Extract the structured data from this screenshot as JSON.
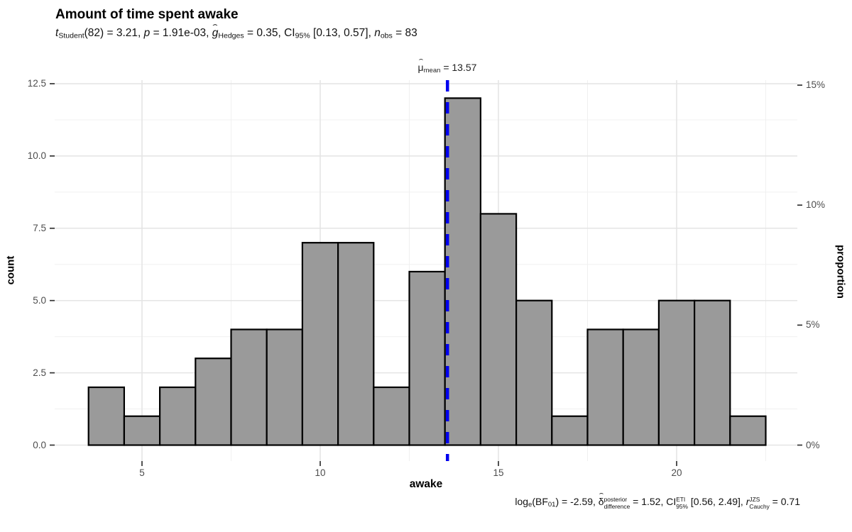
{
  "header": {
    "title": "Amount of time spent awake"
  },
  "subtitle_segments": [
    {
      "t": "t",
      "i": true
    },
    {
      "t": "Student",
      "sub": true
    },
    {
      "t": "(82) = 3.21, "
    },
    {
      "t": "p",
      "i": true
    },
    {
      "t": " = 1.91e-03, "
    },
    {
      "t": "g",
      "i": true,
      "hat": true
    },
    {
      "t": "Hedges",
      "sub": true
    },
    {
      "t": " = 0.35, CI"
    },
    {
      "t": "95%",
      "sub": true
    },
    {
      "t": " [0.13, 0.57], "
    },
    {
      "t": "n",
      "i": true
    },
    {
      "t": "obs",
      "sub": true
    },
    {
      "t": " = 83"
    }
  ],
  "caption_segments": [
    {
      "t": "log"
    },
    {
      "t": "e",
      "sub": true
    },
    {
      "t": "(BF"
    },
    {
      "t": "01",
      "sub": true
    },
    {
      "t": ") = -2.59, "
    },
    {
      "t": "δ",
      "hat": true
    },
    {
      "stack": {
        "sup": "posterior",
        "sub": "difference"
      }
    },
    {
      "t": " = 1.52, CI"
    },
    {
      "stack": {
        "sup": "ETI",
        "sub": "95%"
      }
    },
    {
      "t": " [0.56, 2.49], "
    },
    {
      "t": "r",
      "i": true
    },
    {
      "stack": {
        "sup": "JZS",
        "sub": "Cauchy"
      }
    },
    {
      "t": " = 0.71"
    }
  ],
  "chart_data": {
    "type": "histogram",
    "title": "Amount of time spent awake",
    "xlabel": "awake",
    "ylabel_left": "count",
    "ylabel_right": "proportion",
    "bin_start": 3.5,
    "bin_width": 1,
    "counts": [
      2,
      1,
      2,
      3,
      4,
      4,
      7,
      7,
      2,
      6,
      12,
      8,
      5,
      1,
      4,
      4,
      5,
      5,
      1
    ],
    "n_obs": 83,
    "xlim": [
      2.55,
      23.45
    ],
    "ylim": [
      -0.55,
      12.65
    ],
    "grid": true,
    "x": {
      "ticks": [
        {
          "v": 5,
          "label": "5"
        },
        {
          "v": 10,
          "label": "10"
        },
        {
          "v": 15,
          "label": "15"
        },
        {
          "v": 20,
          "label": "20"
        }
      ],
      "minor": [
        7.5,
        12.5,
        17.5,
        22.5
      ]
    },
    "y_left": {
      "ticks": [
        {
          "v": 0,
          "label": "0.0"
        },
        {
          "v": 2.5,
          "label": "2.5"
        },
        {
          "v": 5,
          "label": "5.0"
        },
        {
          "v": 7.5,
          "label": "7.5"
        },
        {
          "v": 10,
          "label": "10.0"
        },
        {
          "v": 12.5,
          "label": "12.5"
        }
      ],
      "minor": [
        1.25,
        3.75,
        6.25,
        8.75,
        11.25
      ]
    },
    "y_right": {
      "ticks": [
        {
          "pct": 0,
          "label": "0%"
        },
        {
          "pct": 5,
          "label": "5%"
        },
        {
          "pct": 10,
          "label": "10%"
        },
        {
          "pct": 15,
          "label": "15%"
        }
      ]
    },
    "mean_line": {
      "value": 13.57,
      "style": "dashed",
      "label_segments": [
        {
          "t": "μ",
          "hat": true
        },
        {
          "t": "mean",
          "sub": true
        },
        {
          "t": " = 13.57"
        }
      ]
    },
    "colors": {
      "bar_fill": "#9A9A9A",
      "bar_stroke": "#000000",
      "mean_line": "#0000EE",
      "grid_major": "#E4E4E4",
      "grid_minor": "#F0F0F0",
      "tick": "#333333",
      "tick_label": "#4D4D4D"
    }
  }
}
